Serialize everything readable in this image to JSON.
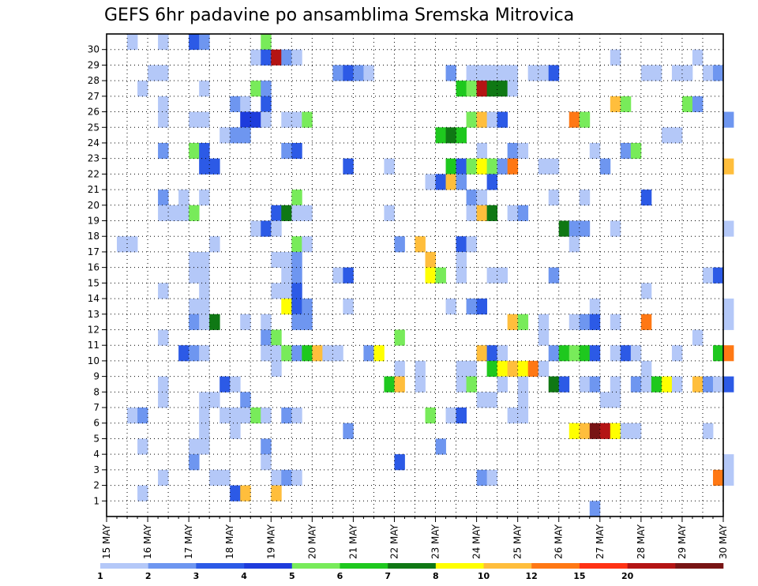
{
  "chart_data": {
    "type": "heatmap",
    "title": "GEFS 6hr padavine po ansamblima Sremska Mitrovica",
    "xlabel": "",
    "ylabel": "",
    "x_ticks": [
      "15 MAY",
      "16 MAY",
      "17 MAY",
      "18 MAY",
      "19 MAY",
      "20 MAY",
      "21 MAY",
      "22 MAY",
      "23 MAY",
      "24 MAY",
      "25 MAY",
      "26 MAY",
      "27 MAY",
      "28 MAY",
      "29 MAY",
      "30 MAY"
    ],
    "y_ticks": [
      "1",
      "2",
      "3",
      "4",
      "5",
      "6",
      "7",
      "8",
      "9",
      "10",
      "11",
      "12",
      "13",
      "14",
      "15",
      "16",
      "17",
      "18",
      "19",
      "20",
      "21",
      "22",
      "23",
      "24",
      "25",
      "26",
      "27",
      "28",
      "29",
      "30"
    ],
    "x_range_steps": [
      0,
      60
    ],
    "y_range_members": [
      0,
      30
    ],
    "grid": "dotted",
    "legend": {
      "placement": "bottom",
      "labels": [
        "1",
        "2",
        "3",
        "4",
        "5",
        "6",
        "7",
        "8",
        "10",
        "12",
        "15",
        "20"
      ],
      "colors": [
        "#b4c8f8",
        "#6e96f0",
        "#2c5ae6",
        "#1e3cdc",
        "#78eb5a",
        "#1ec81e",
        "#0f7814",
        "#ffff00",
        "#ffbe3c",
        "#ff7814",
        "#ff3214",
        "#b41414",
        "#781414"
      ]
    },
    "cells_note": "each cell: [step (6h interval from 15 MAY 00z), ensemble member, color class index 0-12]",
    "cells": [
      [
        2,
        30,
        0
      ],
      [
        5,
        30,
        0
      ],
      [
        8,
        30,
        2
      ],
      [
        9,
        30,
        1
      ],
      [
        15,
        30,
        4
      ],
      [
        14,
        29,
        0
      ],
      [
        15,
        29,
        2
      ],
      [
        16,
        29,
        11
      ],
      [
        17,
        29,
        1
      ],
      [
        18,
        29,
        0
      ],
      [
        49,
        29,
        0
      ],
      [
        57,
        29,
        0
      ],
      [
        4,
        28,
        0
      ],
      [
        5,
        28,
        0
      ],
      [
        22,
        28,
        1
      ],
      [
        23,
        28,
        2
      ],
      [
        24,
        28,
        1
      ],
      [
        25,
        28,
        0
      ],
      [
        33,
        28,
        1
      ],
      [
        35,
        28,
        0
      ],
      [
        36,
        28,
        0
      ],
      [
        37,
        28,
        0
      ],
      [
        38,
        28,
        0
      ],
      [
        39,
        28,
        0
      ],
      [
        41,
        28,
        0
      ],
      [
        42,
        28,
        0
      ],
      [
        43,
        28,
        2
      ],
      [
        52,
        28,
        0
      ],
      [
        53,
        28,
        0
      ],
      [
        55,
        28,
        0
      ],
      [
        56,
        28,
        0
      ],
      [
        58,
        28,
        0
      ],
      [
        59,
        28,
        1
      ],
      [
        3,
        27,
        0
      ],
      [
        9,
        27,
        0
      ],
      [
        14,
        27,
        4
      ],
      [
        15,
        27,
        1
      ],
      [
        34,
        27,
        5
      ],
      [
        35,
        27,
        4
      ],
      [
        36,
        27,
        11
      ],
      [
        37,
        27,
        6
      ],
      [
        38,
        27,
        6
      ],
      [
        39,
        27,
        0
      ],
      [
        5,
        26,
        0
      ],
      [
        12,
        26,
        1
      ],
      [
        13,
        26,
        0
      ],
      [
        15,
        26,
        2
      ],
      [
        49,
        26,
        8
      ],
      [
        50,
        26,
        4
      ],
      [
        56,
        26,
        4
      ],
      [
        57,
        26,
        1
      ],
      [
        5,
        25,
        0
      ],
      [
        8,
        25,
        0
      ],
      [
        9,
        25,
        0
      ],
      [
        13,
        25,
        3
      ],
      [
        14,
        25,
        3
      ],
      [
        15,
        25,
        0
      ],
      [
        17,
        25,
        0
      ],
      [
        18,
        25,
        0
      ],
      [
        19,
        25,
        4
      ],
      [
        35,
        25,
        4
      ],
      [
        36,
        25,
        8
      ],
      [
        37,
        25,
        0
      ],
      [
        38,
        25,
        2
      ],
      [
        45,
        25,
        9
      ],
      [
        46,
        25,
        4
      ],
      [
        60,
        25,
        1
      ],
      [
        11,
        24,
        0
      ],
      [
        12,
        24,
        1
      ],
      [
        13,
        24,
        1
      ],
      [
        32,
        24,
        5
      ],
      [
        33,
        24,
        6
      ],
      [
        34,
        24,
        5
      ],
      [
        54,
        24,
        0
      ],
      [
        55,
        24,
        0
      ],
      [
        5,
        23,
        1
      ],
      [
        8,
        23,
        4
      ],
      [
        9,
        23,
        2
      ],
      [
        17,
        23,
        1
      ],
      [
        18,
        23,
        2
      ],
      [
        36,
        23,
        0
      ],
      [
        39,
        23,
        1
      ],
      [
        40,
        23,
        0
      ],
      [
        47,
        23,
        0
      ],
      [
        50,
        23,
        1
      ],
      [
        51,
        23,
        4
      ],
      [
        9,
        22,
        2
      ],
      [
        10,
        22,
        2
      ],
      [
        23,
        22,
        2
      ],
      [
        27,
        22,
        0
      ],
      [
        33,
        22,
        5
      ],
      [
        34,
        22,
        2
      ],
      [
        35,
        22,
        4
      ],
      [
        36,
        22,
        7
      ],
      [
        37,
        22,
        4
      ],
      [
        38,
        22,
        1
      ],
      [
        39,
        22,
        9
      ],
      [
        42,
        22,
        0
      ],
      [
        43,
        22,
        0
      ],
      [
        48,
        22,
        1
      ],
      [
        60,
        22,
        8
      ],
      [
        31,
        21,
        0
      ],
      [
        32,
        21,
        2
      ],
      [
        33,
        21,
        8
      ],
      [
        34,
        21,
        1
      ],
      [
        37,
        21,
        2
      ],
      [
        5,
        20,
        1
      ],
      [
        7,
        20,
        0
      ],
      [
        9,
        20,
        0
      ],
      [
        18,
        20,
        4
      ],
      [
        35,
        20,
        1
      ],
      [
        36,
        20,
        0
      ],
      [
        43,
        20,
        0
      ],
      [
        46,
        20,
        0
      ],
      [
        52,
        20,
        2
      ],
      [
        5,
        19,
        0
      ],
      [
        6,
        19,
        0
      ],
      [
        7,
        19,
        0
      ],
      [
        8,
        19,
        4
      ],
      [
        16,
        19,
        2
      ],
      [
        17,
        19,
        6
      ],
      [
        18,
        19,
        0
      ],
      [
        19,
        19,
        0
      ],
      [
        27,
        19,
        0
      ],
      [
        35,
        19,
        0
      ],
      [
        36,
        19,
        8
      ],
      [
        37,
        19,
        6
      ],
      [
        39,
        19,
        0
      ],
      [
        40,
        19,
        1
      ],
      [
        14,
        18,
        0
      ],
      [
        15,
        18,
        2
      ],
      [
        16,
        18,
        0
      ],
      [
        44,
        18,
        6
      ],
      [
        45,
        18,
        1
      ],
      [
        46,
        18,
        1
      ],
      [
        49,
        18,
        0
      ],
      [
        60,
        18,
        0
      ],
      [
        1,
        17,
        0
      ],
      [
        2,
        17,
        0
      ],
      [
        10,
        17,
        0
      ],
      [
        18,
        17,
        4
      ],
      [
        19,
        17,
        0
      ],
      [
        28,
        17,
        1
      ],
      [
        30,
        17,
        8
      ],
      [
        34,
        17,
        2
      ],
      [
        35,
        17,
        0
      ],
      [
        45,
        17,
        0
      ],
      [
        8,
        16,
        0
      ],
      [
        9,
        16,
        0
      ],
      [
        16,
        16,
        0
      ],
      [
        17,
        16,
        0
      ],
      [
        18,
        16,
        1
      ],
      [
        31,
        16,
        8
      ],
      [
        34,
        16,
        0
      ],
      [
        8,
        15,
        0
      ],
      [
        9,
        15,
        0
      ],
      [
        17,
        15,
        0
      ],
      [
        18,
        15,
        1
      ],
      [
        22,
        15,
        0
      ],
      [
        23,
        15,
        2
      ],
      [
        31,
        15,
        7
      ],
      [
        32,
        15,
        4
      ],
      [
        34,
        15,
        0
      ],
      [
        37,
        15,
        0
      ],
      [
        38,
        15,
        0
      ],
      [
        43,
        15,
        1
      ],
      [
        58,
        15,
        0
      ],
      [
        59,
        15,
        2
      ],
      [
        5,
        14,
        0
      ],
      [
        9,
        14,
        0
      ],
      [
        16,
        14,
        0
      ],
      [
        17,
        14,
        0
      ],
      [
        18,
        14,
        2
      ],
      [
        52,
        14,
        0
      ],
      [
        8,
        13,
        0
      ],
      [
        9,
        13,
        0
      ],
      [
        17,
        13,
        7
      ],
      [
        18,
        13,
        2
      ],
      [
        19,
        13,
        1
      ],
      [
        23,
        13,
        0
      ],
      [
        33,
        13,
        0
      ],
      [
        35,
        13,
        1
      ],
      [
        36,
        13,
        2
      ],
      [
        47,
        13,
        0
      ],
      [
        60,
        13,
        0
      ],
      [
        8,
        12,
        1
      ],
      [
        9,
        12,
        0
      ],
      [
        10,
        12,
        6
      ],
      [
        13,
        12,
        0
      ],
      [
        15,
        12,
        0
      ],
      [
        18,
        12,
        1
      ],
      [
        19,
        12,
        1
      ],
      [
        39,
        12,
        8
      ],
      [
        40,
        12,
        4
      ],
      [
        42,
        12,
        0
      ],
      [
        45,
        12,
        0
      ],
      [
        46,
        12,
        1
      ],
      [
        47,
        12,
        2
      ],
      [
        49,
        12,
        0
      ],
      [
        52,
        12,
        9
      ],
      [
        60,
        12,
        0
      ],
      [
        5,
        11,
        0
      ],
      [
        15,
        11,
        1
      ],
      [
        16,
        11,
        4
      ],
      [
        28,
        11,
        4
      ],
      [
        42,
        11,
        0
      ],
      [
        57,
        11,
        0
      ],
      [
        7,
        10,
        2
      ],
      [
        8,
        10,
        1
      ],
      [
        9,
        10,
        0
      ],
      [
        15,
        10,
        0
      ],
      [
        16,
        10,
        0
      ],
      [
        17,
        10,
        4
      ],
      [
        18,
        10,
        1
      ],
      [
        19,
        10,
        5
      ],
      [
        20,
        10,
        8
      ],
      [
        21,
        10,
        0
      ],
      [
        22,
        10,
        0
      ],
      [
        25,
        10,
        1
      ],
      [
        26,
        10,
        7
      ],
      [
        36,
        10,
        8
      ],
      [
        37,
        10,
        2
      ],
      [
        38,
        10,
        0
      ],
      [
        43,
        10,
        1
      ],
      [
        44,
        10,
        5
      ],
      [
        45,
        10,
        4
      ],
      [
        46,
        10,
        5
      ],
      [
        47,
        10,
        2
      ],
      [
        49,
        10,
        0
      ],
      [
        50,
        10,
        2
      ],
      [
        51,
        10,
        0
      ],
      [
        55,
        10,
        0
      ],
      [
        59,
        10,
        5
      ],
      [
        60,
        10,
        9
      ],
      [
        16,
        9,
        0
      ],
      [
        28,
        9,
        0
      ],
      [
        30,
        9,
        0
      ],
      [
        34,
        9,
        0
      ],
      [
        35,
        9,
        0
      ],
      [
        37,
        9,
        5
      ],
      [
        38,
        9,
        7
      ],
      [
        39,
        9,
        8
      ],
      [
        40,
        9,
        7
      ],
      [
        41,
        9,
        9
      ],
      [
        42,
        9,
        0
      ],
      [
        52,
        9,
        0
      ],
      [
        5,
        8,
        0
      ],
      [
        11,
        8,
        2
      ],
      [
        12,
        8,
        0
      ],
      [
        27,
        8,
        5
      ],
      [
        28,
        8,
        8
      ],
      [
        30,
        8,
        0
      ],
      [
        34,
        8,
        0
      ],
      [
        35,
        8,
        4
      ],
      [
        38,
        8,
        0
      ],
      [
        40,
        8,
        0
      ],
      [
        43,
        8,
        6
      ],
      [
        44,
        8,
        2
      ],
      [
        46,
        8,
        0
      ],
      [
        47,
        8,
        1
      ],
      [
        49,
        8,
        0
      ],
      [
        51,
        8,
        1
      ],
      [
        52,
        8,
        0
      ],
      [
        53,
        8,
        5
      ],
      [
        54,
        8,
        7
      ],
      [
        55,
        8,
        0
      ],
      [
        57,
        8,
        8
      ],
      [
        58,
        8,
        1
      ],
      [
        59,
        8,
        0
      ],
      [
        60,
        8,
        2
      ],
      [
        5,
        7,
        0
      ],
      [
        9,
        7,
        0
      ],
      [
        10,
        7,
        0
      ],
      [
        13,
        7,
        1
      ],
      [
        36,
        7,
        0
      ],
      [
        37,
        7,
        0
      ],
      [
        40,
        7,
        0
      ],
      [
        48,
        7,
        0
      ],
      [
        49,
        7,
        0
      ],
      [
        2,
        6,
        0
      ],
      [
        3,
        6,
        1
      ],
      [
        9,
        6,
        0
      ],
      [
        11,
        6,
        0
      ],
      [
        12,
        6,
        0
      ],
      [
        13,
        6,
        0
      ],
      [
        14,
        6,
        4
      ],
      [
        15,
        6,
        0
      ],
      [
        17,
        6,
        1
      ],
      [
        18,
        6,
        0
      ],
      [
        31,
        6,
        4
      ],
      [
        33,
        6,
        0
      ],
      [
        34,
        6,
        2
      ],
      [
        39,
        6,
        0
      ],
      [
        40,
        6,
        0
      ],
      [
        9,
        5,
        0
      ],
      [
        12,
        5,
        0
      ],
      [
        23,
        5,
        1
      ],
      [
        45,
        5,
        7
      ],
      [
        46,
        5,
        8
      ],
      [
        47,
        5,
        12
      ],
      [
        48,
        5,
        11
      ],
      [
        49,
        5,
        7
      ],
      [
        50,
        5,
        0
      ],
      [
        51,
        5,
        0
      ],
      [
        58,
        5,
        0
      ],
      [
        3,
        4,
        0
      ],
      [
        8,
        4,
        0
      ],
      [
        9,
        4,
        0
      ],
      [
        15,
        4,
        1
      ],
      [
        32,
        4,
        1
      ],
      [
        8,
        3,
        1
      ],
      [
        15,
        3,
        0
      ],
      [
        28,
        3,
        2
      ],
      [
        60,
        3,
        0
      ],
      [
        5,
        2,
        0
      ],
      [
        10,
        2,
        0
      ],
      [
        11,
        2,
        0
      ],
      [
        16,
        2,
        0
      ],
      [
        17,
        2,
        1
      ],
      [
        18,
        2,
        0
      ],
      [
        36,
        2,
        1
      ],
      [
        37,
        2,
        0
      ],
      [
        59,
        2,
        9
      ],
      [
        60,
        2,
        0
      ],
      [
        3,
        1,
        0
      ],
      [
        12,
        1,
        2
      ],
      [
        13,
        1,
        8
      ],
      [
        16,
        1,
        8
      ],
      [
        47,
        0,
        1
      ]
    ]
  }
}
